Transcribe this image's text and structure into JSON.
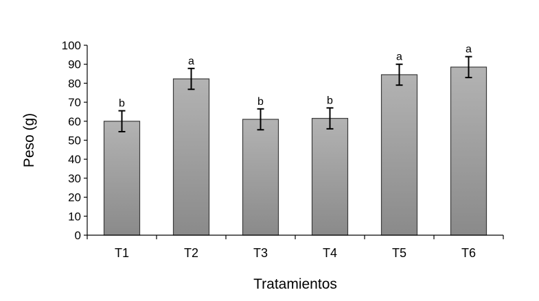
{
  "chart_data": {
    "type": "bar",
    "title": "",
    "xlabel": "Tratamientos",
    "ylabel": "Peso (g)",
    "ylim": [
      0,
      100
    ],
    "ytick_step": 10,
    "ytick_labels": [
      "0",
      "10",
      "20",
      "30",
      "40",
      "50",
      "60",
      "70",
      "80",
      "90",
      "100"
    ],
    "categories": [
      "T1",
      "T2",
      "T3",
      "T4",
      "T5",
      "T6"
    ],
    "values": [
      60,
      82.3,
      61,
      61.5,
      84.5,
      88.5
    ],
    "error": [
      5.5,
      5.5,
      5.5,
      5.5,
      5.5,
      5.5
    ],
    "significance": [
      "b",
      "a",
      "b",
      "b",
      "a",
      "a"
    ],
    "grid": false,
    "legend": "none",
    "bar_color_top": "#b3b3b3",
    "bar_color_bottom": "#8a8a8a",
    "bar_edge_color": "#3a3a3a"
  }
}
